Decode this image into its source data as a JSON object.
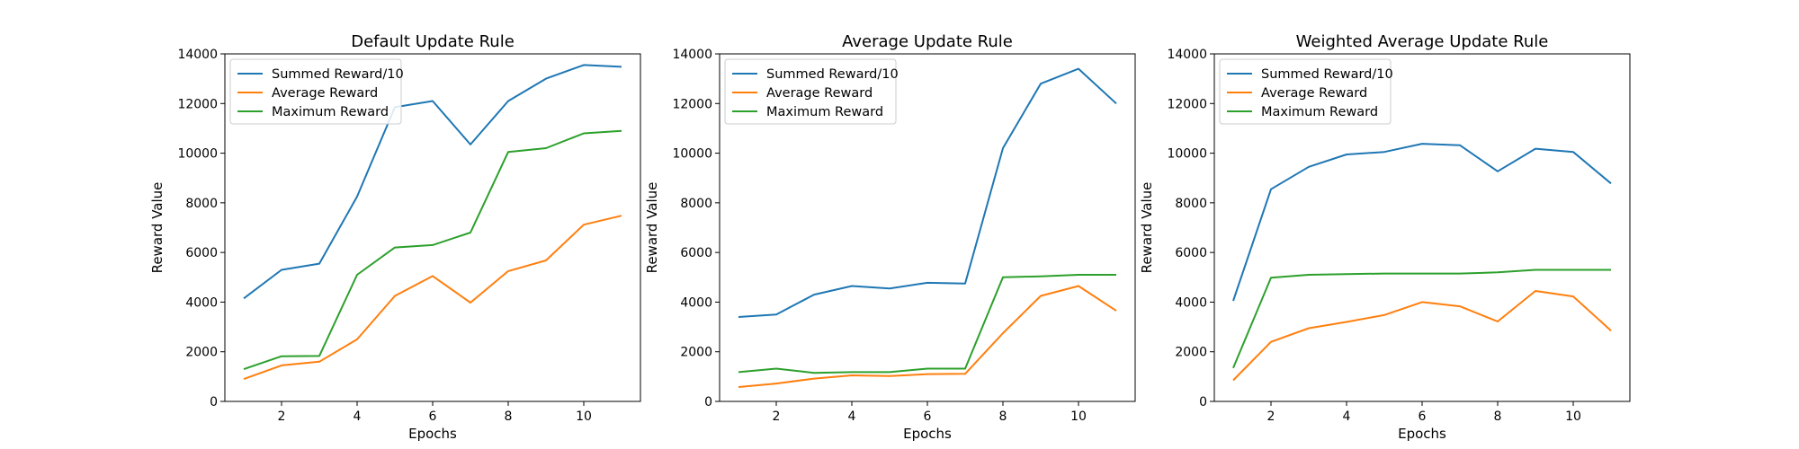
{
  "chart_data": [
    {
      "type": "line",
      "title": "Default Update Rule",
      "xlabel": "Epochs",
      "ylabel": "Reward Value",
      "xlim": [
        0.5,
        11.5
      ],
      "ylim": [
        0,
        14000
      ],
      "xticks": [
        2,
        4,
        6,
        8,
        10
      ],
      "yticks": [
        0,
        2000,
        4000,
        6000,
        8000,
        10000,
        12000,
        14000
      ],
      "grid": false,
      "legend": "upper-left",
      "x": [
        1,
        2,
        3,
        4,
        5,
        6,
        7,
        8,
        9,
        10,
        11
      ],
      "series": [
        {
          "name": "Summed Reward/10",
          "color": "#1f77b4",
          "values": [
            4150,
            5300,
            5550,
            8250,
            11850,
            12100,
            10350,
            12100,
            13000,
            13550,
            13480
          ]
        },
        {
          "name": "Average Reward",
          "color": "#ff7f0e",
          "values": [
            900,
            1450,
            1600,
            2500,
            4250,
            5050,
            3980,
            5250,
            5680,
            7120,
            7480
          ]
        },
        {
          "name": "Maximum Reward",
          "color": "#2ca02c",
          "values": [
            1300,
            1820,
            1830,
            5100,
            6200,
            6300,
            6800,
            10050,
            10200,
            10800,
            10900
          ]
        }
      ]
    },
    {
      "type": "line",
      "title": "Average Update Rule",
      "xlabel": "Epochs",
      "ylabel": "Reward Value",
      "xlim": [
        0.5,
        11.5
      ],
      "ylim": [
        0,
        14000
      ],
      "xticks": [
        2,
        4,
        6,
        8,
        10
      ],
      "yticks": [
        0,
        2000,
        4000,
        6000,
        8000,
        10000,
        12000,
        14000
      ],
      "grid": false,
      "legend": "upper-left",
      "x": [
        1,
        2,
        3,
        4,
        5,
        6,
        7,
        8,
        9,
        10,
        11
      ],
      "series": [
        {
          "name": "Summed Reward/10",
          "color": "#1f77b4",
          "values": [
            3400,
            3500,
            4300,
            4650,
            4550,
            4780,
            4750,
            10200,
            12800,
            13400,
            12000
          ]
        },
        {
          "name": "Average Reward",
          "color": "#ff7f0e",
          "values": [
            580,
            720,
            920,
            1050,
            1020,
            1100,
            1110,
            2750,
            4250,
            4650,
            3650
          ]
        },
        {
          "name": "Maximum Reward",
          "color": "#2ca02c",
          "values": [
            1180,
            1320,
            1150,
            1180,
            1180,
            1320,
            1320,
            5000,
            5040,
            5100,
            5100
          ]
        }
      ]
    },
    {
      "type": "line",
      "title": "Weighted Average Update Rule",
      "xlabel": "Epochs",
      "ylabel": "Reward Value",
      "xlim": [
        0.5,
        11.5
      ],
      "ylim": [
        0,
        14000
      ],
      "xticks": [
        2,
        4,
        6,
        8,
        10
      ],
      "yticks": [
        0,
        2000,
        4000,
        6000,
        8000,
        10000,
        12000,
        14000
      ],
      "grid": false,
      "legend": "upper-left",
      "x": [
        1,
        2,
        3,
        4,
        5,
        6,
        7,
        8,
        9,
        10,
        11
      ],
      "series": [
        {
          "name": "Summed Reward/10",
          "color": "#1f77b4",
          "values": [
            4050,
            8550,
            9450,
            9950,
            10050,
            10380,
            10320,
            9270,
            10180,
            10050,
            8780
          ]
        },
        {
          "name": "Average Reward",
          "color": "#ff7f0e",
          "values": [
            850,
            2400,
            2950,
            3200,
            3480,
            4000,
            3830,
            3220,
            4450,
            4230,
            2850
          ]
        },
        {
          "name": "Maximum Reward",
          "color": "#2ca02c",
          "values": [
            1350,
            4980,
            5100,
            5130,
            5150,
            5150,
            5150,
            5200,
            5300,
            5300,
            5300
          ]
        }
      ]
    }
  ]
}
